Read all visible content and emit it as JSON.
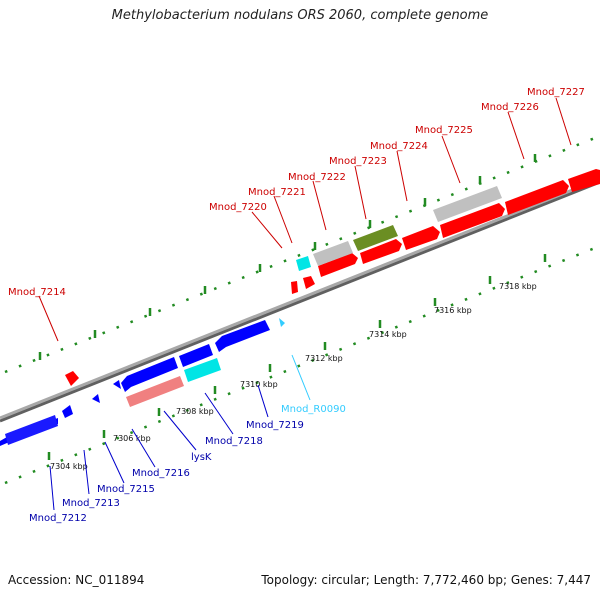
{
  "title": "Methylobacterium nodulans ORS 2060, complete genome",
  "accession": "Accession: NC_011894",
  "topology": "Topology: circular; Length: 7,772,460 bp; Genes: 7,447",
  "colors": {
    "plus_strand": "#ff0000",
    "minus_strand": "#0000ff",
    "gray": "#c0c0c0",
    "olive": "#6b8e23",
    "cyan": "#00e5e5",
    "pink": "#f08080",
    "rna_label": "#33ccff",
    "tick": "#228b22",
    "backbone": "#909090"
  },
  "scale_labels": [
    "7304 kbp",
    "7306 kbp",
    "7308 kbp",
    "7310 kbp",
    "7312 kbp",
    "7314 kbp",
    "7316 kbp",
    "7318 kbp"
  ],
  "gene_labels": {
    "top": [
      "Mnod_7214",
      "Mnod_7220",
      "Mnod_7221",
      "Mnod_7222",
      "Mnod_7223",
      "Mnod_7224",
      "Mnod_7225",
      "Mnod_7226",
      "Mnod_7227"
    ],
    "bottom": [
      "Mnod_7212",
      "Mnod_7213",
      "Mnod_7215",
      "Mnod_7216",
      "lysK",
      "Mnod_7218",
      "Mnod_7219",
      "Mnod_R0090"
    ]
  }
}
